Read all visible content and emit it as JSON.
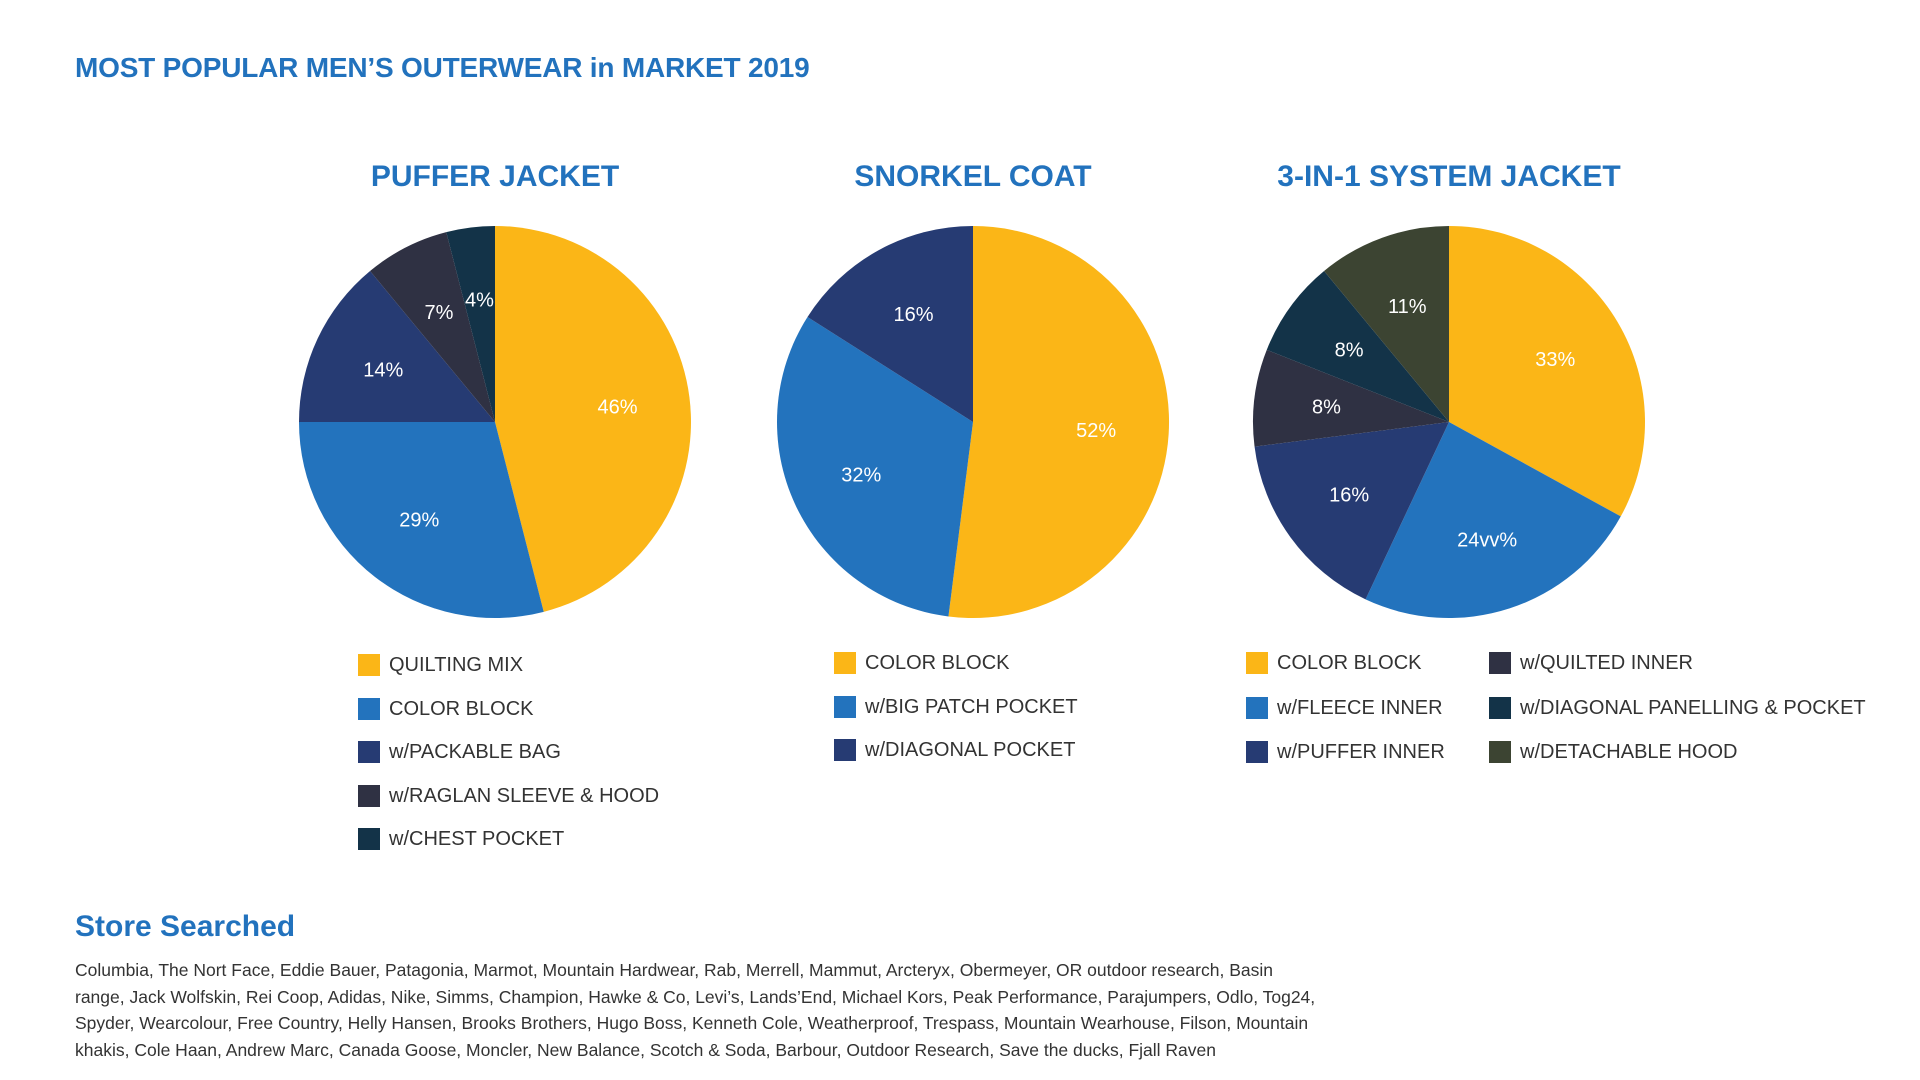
{
  "title": "MOST POPULAR MEN’S OUTERWEAR in MARKET 2019",
  "colors": {
    "yellow": "#fbb617",
    "blue": "#2373bd",
    "navy": "#263b73",
    "charcoal": "#2f3143",
    "teal": "#133348",
    "olive": "#3c4432",
    "title_blue": "#2272bd"
  },
  "chart_data": [
    {
      "type": "pie",
      "title": "PUFFER JACKET",
      "categories": [
        "QUILTING MIX",
        "COLOR BLOCK",
        "w/PACKABLE BAG",
        "w/RAGLAN SLEEVE & HOOD",
        "w/CHEST POCKET"
      ],
      "values": [
        46,
        29,
        14,
        7,
        4
      ],
      "labels": [
        "46%",
        "29%",
        "14%",
        "7%",
        "4%"
      ],
      "colors": [
        "#fbb617",
        "#2373bd",
        "#263b73",
        "#2f3143",
        "#133348"
      ],
      "legend": "below"
    },
    {
      "type": "pie",
      "title": "SNORKEL COAT",
      "categories": [
        "COLOR BLOCK",
        "w/BIG PATCH POCKET",
        "w/DIAGONAL POCKET"
      ],
      "values": [
        52,
        32,
        16
      ],
      "labels": [
        "52%",
        "32%",
        "16%"
      ],
      "colors": [
        "#fbb617",
        "#2373bd",
        "#263b73"
      ],
      "legend": "below"
    },
    {
      "type": "pie",
      "title": "3-IN-1 SYSTEM JACKET",
      "categories": [
        "COLOR BLOCK",
        "w/FLEECE INNER",
        "w/PUFFER INNER",
        "w/QUILTED INNER",
        "w/DIAGONAL PANELLING & POCKET",
        "w/DETACHABLE HOOD"
      ],
      "values": [
        33,
        24,
        16,
        8,
        8,
        11
      ],
      "labels": [
        "33%",
        "24vv%",
        "16%",
        "8%",
        "8%",
        "11%"
      ],
      "colors": [
        "#fbb617",
        "#2373bd",
        "#263b73",
        "#2f3143",
        "#133348",
        "#3c4432"
      ],
      "legend": "below"
    }
  ],
  "stores": {
    "title": "Store Searched",
    "lines": [
      "Columbia, The Nort Face, Eddie Bauer, Patagonia, Marmot, Mountain Hardwear, Rab, Merrell, Mammut, Arcteryx, Obermeyer, OR outdoor research, Basin",
      "range, Jack Wolfskin, Rei Coop, Adidas, Nike, Simms, Champion, Hawke & Co, Levi’s, Lands’End, Michael Kors, Peak Performance, Parajumpers, Odlo, Tog24,",
      "Spyder, Wearcolour, Free Country, Helly Hansen, Brooks Brothers, Hugo Boss, Kenneth Cole, Weatherproof, Trespass, Mountain Wearhouse, Filson, Mountain",
      "khakis, Cole Haan, Andrew Marc, Canada Goose, Moncler, New Balance, Scotch & Soda, Barbour, Outdoor Research, Save the ducks, Fjall Raven"
    ]
  }
}
